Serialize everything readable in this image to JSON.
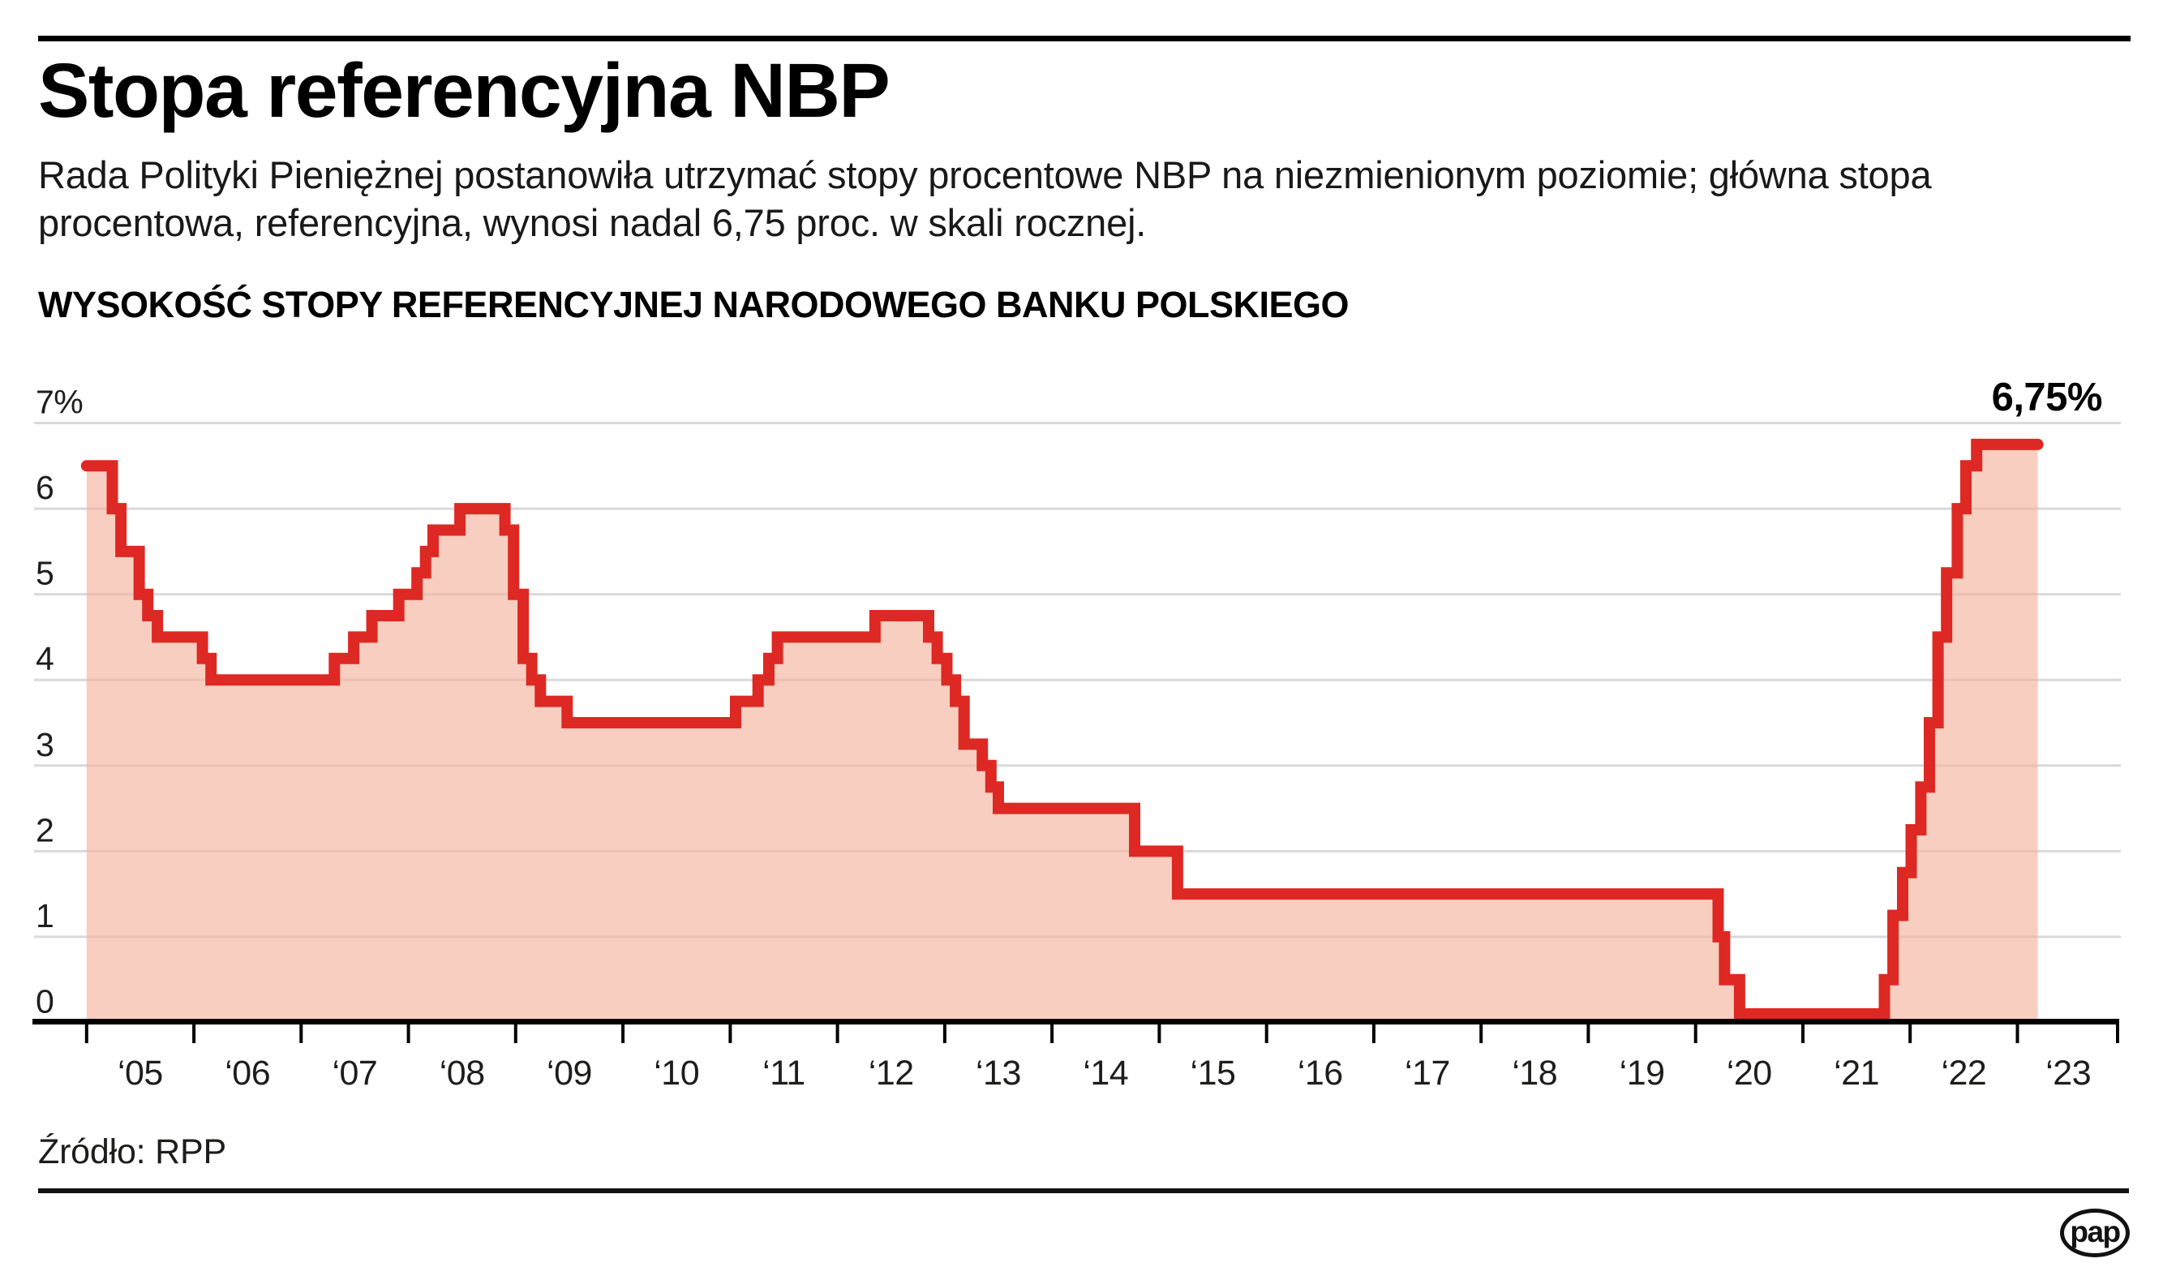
{
  "header": {
    "title": "Stopa referencyjna NBP",
    "subtitle_line1": "Rada Polityki Pieniężnej postanowiła utrzymać stopy procentowe NBP na niezmienionym poziomie; główna stopa",
    "subtitle_line2": "procentowa, referencyjna, wynosi nadal 6,75 proc. w skali rocznej."
  },
  "chart_data": {
    "type": "area",
    "subtype": "step",
    "title": "WYSOKOŚĆ STOPY REFERENCYJNEJ NARODOWEGO BANKU POLSKIEGO",
    "unit": "%",
    "ylim": [
      0,
      7
    ],
    "grid": true,
    "legend": false,
    "colors": {
      "line": "#de2823",
      "fill": "#f7c7b7",
      "grid": "#e3e6ea",
      "axis": "#000000"
    },
    "y_ticks": [
      {
        "value": 0,
        "label": "0"
      },
      {
        "value": 1,
        "label": "1"
      },
      {
        "value": 2,
        "label": "2"
      },
      {
        "value": 3,
        "label": "3"
      },
      {
        "value": 4,
        "label": "4"
      },
      {
        "value": 5,
        "label": "5"
      },
      {
        "value": 6,
        "label": "6"
      },
      {
        "value": 7,
        "label": "7%"
      }
    ],
    "x_ticks_years": [
      2005,
      2006,
      2007,
      2008,
      2009,
      2010,
      2011,
      2012,
      2013,
      2014,
      2015,
      2016,
      2017,
      2018,
      2019,
      2020,
      2021,
      2022,
      2023
    ],
    "x_tick_labels": [
      "‘05",
      "‘06",
      "‘07",
      "‘08",
      "‘09",
      "‘10",
      "‘11",
      "‘12",
      "‘13",
      "‘14",
      "‘15",
      "‘16",
      "‘17",
      "‘18",
      "‘19",
      "‘20",
      "‘21",
      "‘22",
      "‘23"
    ],
    "x_start": 2005.0,
    "x_end": 2023.19,
    "annotation": {
      "text": "6,75%",
      "value": 6.75
    },
    "series": [
      {
        "name": "stopa referencyjna NBP",
        "steps": [
          [
            2005.0,
            6.5
          ],
          [
            2005.24,
            6.0
          ],
          [
            2005.32,
            5.5
          ],
          [
            2005.49,
            5.0
          ],
          [
            2005.57,
            4.75
          ],
          [
            2005.66,
            4.5
          ],
          [
            2006.08,
            4.25
          ],
          [
            2006.16,
            4.0
          ],
          [
            2007.31,
            4.25
          ],
          [
            2007.49,
            4.5
          ],
          [
            2007.66,
            4.75
          ],
          [
            2007.91,
            5.0
          ],
          [
            2008.08,
            5.25
          ],
          [
            2008.16,
            5.5
          ],
          [
            2008.23,
            5.75
          ],
          [
            2008.48,
            6.0
          ],
          [
            2008.9,
            5.75
          ],
          [
            2008.98,
            5.0
          ],
          [
            2009.07,
            4.25
          ],
          [
            2009.15,
            4.0
          ],
          [
            2009.23,
            3.75
          ],
          [
            2009.48,
            3.5
          ],
          [
            2011.05,
            3.75
          ],
          [
            2011.26,
            4.0
          ],
          [
            2011.36,
            4.25
          ],
          [
            2011.44,
            4.5
          ],
          [
            2012.35,
            4.75
          ],
          [
            2012.85,
            4.5
          ],
          [
            2012.93,
            4.25
          ],
          [
            2013.02,
            4.0
          ],
          [
            2013.1,
            3.75
          ],
          [
            2013.18,
            3.25
          ],
          [
            2013.35,
            3.0
          ],
          [
            2013.43,
            2.75
          ],
          [
            2013.5,
            2.5
          ],
          [
            2014.77,
            2.0
          ],
          [
            2015.17,
            1.5
          ],
          [
            2020.21,
            1.0
          ],
          [
            2020.27,
            0.5
          ],
          [
            2020.41,
            0.1
          ],
          [
            2021.76,
            0.5
          ],
          [
            2021.84,
            1.25
          ],
          [
            2021.93,
            1.75
          ],
          [
            2022.01,
            2.25
          ],
          [
            2022.1,
            2.75
          ],
          [
            2022.18,
            3.5
          ],
          [
            2022.26,
            4.5
          ],
          [
            2022.34,
            5.25
          ],
          [
            2022.44,
            6.0
          ],
          [
            2022.52,
            6.5
          ],
          [
            2022.62,
            6.75
          ]
        ]
      }
    ]
  },
  "footer": {
    "source": "Źródło: RPP",
    "logo_text": "pap"
  }
}
